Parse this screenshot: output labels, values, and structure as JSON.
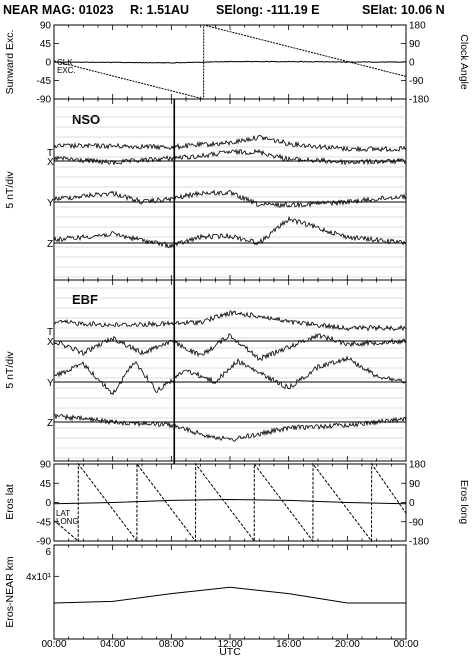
{
  "header": {
    "title": "NEAR MAG: 01023",
    "distance": "R: 1.51AU",
    "selong": "SElong: -111.19 E",
    "selat": "SElat:   10.06 N"
  },
  "x_axis": {
    "label": "UTC",
    "ticks": [
      "00:00",
      "04:00",
      "08:00",
      "12:00",
      "16:00",
      "20:00",
      "00:00"
    ],
    "range_hours": [
      0,
      24
    ]
  },
  "event_marker_hour": 8.2,
  "chart_data": [
    {
      "type": "line",
      "name": "sunward-clock-panel",
      "ylabel_left": "Sunward Exc.",
      "ylabel_right": "Clock Angle",
      "yticks_left": [
        "90",
        "45",
        "0",
        "-45",
        "-90"
      ],
      "yticks_right": [
        "180",
        "90",
        "0",
        "-90",
        "-180"
      ],
      "ylim_left": [
        -90,
        90
      ],
      "ylim_right": [
        -180,
        180
      ],
      "series_labels": [
        "CLK",
        "EXC."
      ],
      "series": [
        {
          "name": "EXC.",
          "x": [
            0,
            4,
            8,
            12,
            16,
            20,
            24
          ],
          "y": [
            0,
            -1,
            -2,
            1,
            1,
            0,
            0
          ]
        },
        {
          "name": "CLK",
          "x": [
            0,
            10.2,
            10.21,
            24
          ],
          "y": [
            5,
            -180,
            180,
            -70
          ]
        }
      ]
    },
    {
      "type": "line",
      "name": "nso-panel",
      "panel_label": "NSO",
      "ylabel": "5 nT/div",
      "series_labels": [
        "T",
        "X",
        "Y",
        "Z"
      ],
      "series": [
        {
          "name": "T",
          "x": [
            0,
            4,
            8,
            10,
            12,
            14,
            16,
            20,
            24
          ],
          "y": [
            1,
            1,
            0.8,
            1.2,
            1.5,
            2.5,
            1.4,
            0.5,
            0.5
          ]
        },
        {
          "name": "X",
          "x": [
            0,
            4,
            8,
            10,
            12,
            14,
            16,
            20,
            24
          ],
          "y": [
            0.5,
            -0.3,
            0.5,
            0.8,
            1.5,
            1.5,
            0.3,
            -0.2,
            0
          ]
        },
        {
          "name": "Y",
          "x": [
            0,
            4,
            6,
            8,
            10,
            12,
            14,
            16,
            20,
            24
          ],
          "y": [
            0.5,
            1.5,
            0,
            0.5,
            1.5,
            1.5,
            -0.5,
            -0.5,
            0,
            1
          ]
        },
        {
          "name": "Z",
          "x": [
            0,
            4,
            8,
            10,
            12,
            14,
            16,
            18,
            20,
            24
          ],
          "y": [
            0.5,
            1.5,
            -0.5,
            1,
            1.2,
            0,
            4,
            2.5,
            1,
            0
          ]
        }
      ]
    },
    {
      "type": "line",
      "name": "ebf-panel",
      "panel_label": "EBF",
      "ylabel": "5 nT/div",
      "series_labels": [
        "T",
        "X",
        "Y",
        "Z"
      ],
      "series": [
        {
          "name": "T",
          "x": [
            0,
            4,
            8,
            10,
            12,
            14,
            16,
            20,
            24
          ],
          "y": [
            1.5,
            1,
            1.2,
            1.5,
            3,
            2.5,
            1.5,
            0.5,
            0.5
          ]
        },
        {
          "name": "X",
          "x": [
            0,
            2,
            4,
            6,
            8,
            10,
            12,
            14,
            16,
            18,
            20,
            24
          ],
          "y": [
            0,
            -2,
            0.5,
            -2,
            0,
            -2.5,
            1,
            -3,
            -1,
            1,
            -0.5,
            0
          ]
        },
        {
          "name": "Y",
          "x": [
            0,
            2,
            4,
            5.5,
            7,
            9,
            11,
            12.5,
            14,
            16,
            18,
            20,
            22,
            24
          ],
          "y": [
            1,
            3,
            -2,
            3.5,
            -1.5,
            2,
            0,
            3.5,
            1.5,
            -1,
            2.5,
            4,
            1,
            0
          ]
        },
        {
          "name": "Z",
          "x": [
            0,
            4,
            8,
            10,
            12,
            14,
            16,
            20,
            24
          ],
          "y": [
            1,
            0,
            -0.5,
            -2,
            -3,
            -2,
            -1,
            -0.5,
            0.5
          ]
        }
      ]
    },
    {
      "type": "line",
      "name": "eros-lat-long-panel",
      "ylabel_left": "Eros lat",
      "ylabel_right": "Eros long",
      "yticks_left": [
        "90",
        "45",
        "0",
        "-45",
        "-90"
      ],
      "yticks_right": [
        "180",
        "90",
        "0",
        "-90",
        "-180"
      ],
      "ylim_left": [
        -90,
        90
      ],
      "ylim_right": [
        -180,
        180
      ],
      "series_labels": [
        "LAT",
        "LONG"
      ],
      "series": [
        {
          "name": "LAT",
          "x": [
            0,
            4,
            8,
            12,
            16,
            20,
            24
          ],
          "y": [
            -3,
            0,
            5,
            7,
            5,
            0,
            -3
          ]
        },
        {
          "name": "LONG",
          "x": [
            0,
            1.65,
            1.66,
            5.65,
            5.66,
            9.65,
            9.66,
            13.65,
            13.66,
            17.65,
            17.66,
            21.65,
            21.66,
            24
          ],
          "y": [
            -84,
            -180,
            180,
            -180,
            180,
            -180,
            180,
            -180,
            180,
            -180,
            180,
            -180,
            180,
            -50
          ]
        }
      ]
    },
    {
      "type": "line",
      "name": "eros-near-distance-panel",
      "ylabel": "Eros-NEAR km",
      "yticks": [
        "6",
        "4x10¹"
      ],
      "ylim": [
        0,
        60
      ],
      "series": [
        {
          "name": "distance",
          "x": [
            0,
            4,
            8,
            12,
            16,
            20,
            24
          ],
          "y": [
            23,
            24,
            29,
            33,
            29,
            23,
            23
          ]
        }
      ]
    }
  ]
}
